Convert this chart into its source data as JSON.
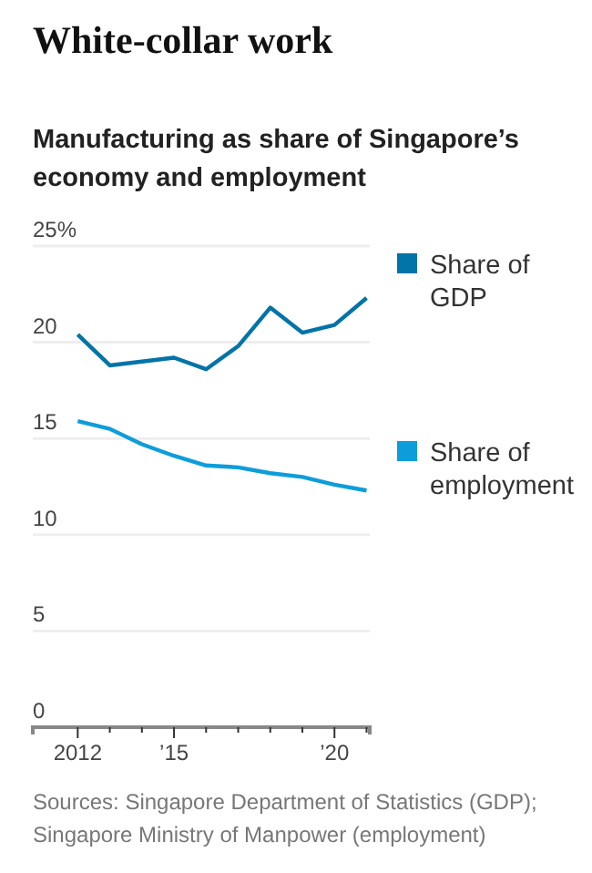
{
  "chart_data": {
    "type": "line",
    "title": "White-collar work",
    "subtitle": "Manufacturing as share of Singapore’s economy and employment",
    "x": [
      2012,
      2013,
      2014,
      2015,
      2016,
      2017,
      2018,
      2019,
      2020,
      2021
    ],
    "series": [
      {
        "name": "Share of GDP",
        "color": "#0274a8",
        "values": [
          20.4,
          18.8,
          19.0,
          19.2,
          18.6,
          19.8,
          21.8,
          20.5,
          20.9,
          22.3
        ]
      },
      {
        "name": "Share of employment",
        "color": "#0d9ddb",
        "values": [
          15.9,
          15.5,
          14.7,
          14.1,
          13.6,
          13.5,
          13.2,
          13.0,
          12.6,
          12.3
        ]
      }
    ],
    "xlim": [
      2010.6,
      2021.1
    ],
    "xticks": [
      2012,
      {
        "value": 2013,
        "label": null
      },
      {
        "value": 2014,
        "label": null
      },
      {
        "value": 2015,
        "label": "’15"
      },
      {
        "value": 2016,
        "label": null
      },
      {
        "value": 2017,
        "label": null
      },
      {
        "value": 2018,
        "label": null
      },
      {
        "value": 2019,
        "label": null
      },
      {
        "value": 2020,
        "label": "’20"
      },
      {
        "value": 2021,
        "label": null
      }
    ],
    "ylim": [
      0,
      25
    ],
    "yticks": [
      0,
      5,
      10,
      15,
      20,
      {
        "value": 25,
        "label": "25%"
      }
    ],
    "grid": "y",
    "legend": "right",
    "annotations": [
      "Sources: Singapore Department of Statistics (GDP); Singapore Ministry of Manpower (employment)"
    ]
  }
}
